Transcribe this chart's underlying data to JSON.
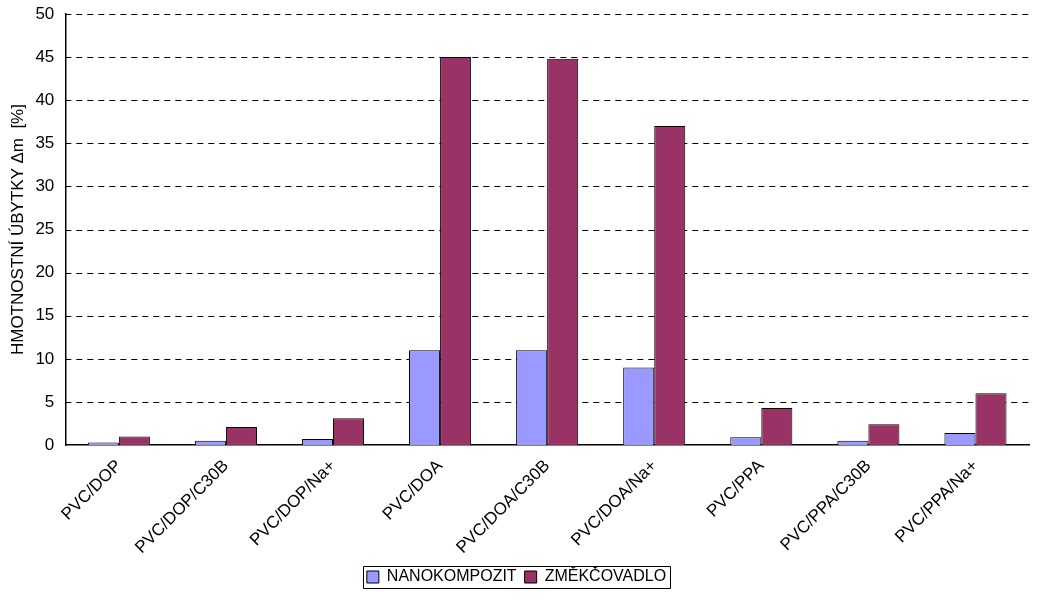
{
  "chart_data": {
    "type": "bar",
    "ylabel": "HMOTNOSTNÍ ÚBYTKY Δm  [%]",
    "categories": [
      "PVC/DOP",
      "PVC/DOP/C30B",
      "PVC/DOP/Na+",
      "PVC/DOA",
      "PVC/DOA/C30B",
      "PVC/DOA/Na+",
      "PVC/PPA",
      "PVC/PPA/C30B",
      "PVC/PPA/Na+"
    ],
    "series": [
      {
        "name": "NANOKOMPOZIT",
        "color": "#9999ff",
        "values": [
          0.3,
          0.5,
          0.7,
          11,
          11,
          9,
          0.9,
          0.5,
          1.4
        ]
      },
      {
        "name": "ZMĚKČOVADLO",
        "color": "#993366",
        "values": [
          1.0,
          2.1,
          3.1,
          45,
          44.8,
          37,
          4.3,
          2.4,
          6.0
        ]
      }
    ],
    "ylim": [
      0,
      50
    ],
    "yticks": [
      0,
      5,
      10,
      15,
      20,
      25,
      30,
      35,
      40,
      45,
      50
    ],
    "grid": "y",
    "legend": "bottom"
  }
}
